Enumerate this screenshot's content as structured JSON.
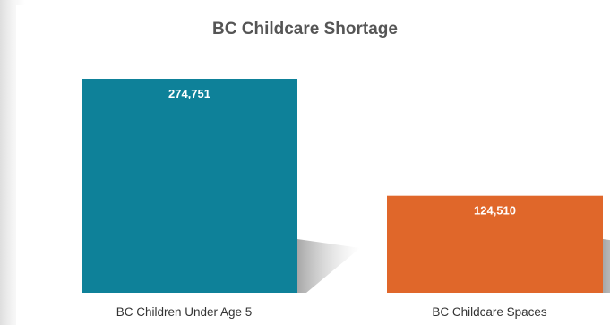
{
  "chart_data": {
    "type": "bar",
    "title": "BC Childcare Shortage",
    "categories": [
      "BC Children Under Age 5",
      "BC Childcare Spaces"
    ],
    "values": [
      274751,
      124510
    ],
    "value_labels": [
      "274,751",
      "124,510"
    ],
    "colors": [
      "#0e8199",
      "#e0672a"
    ],
    "ylim": [
      0,
      274751
    ],
    "grid": false,
    "legend": "none"
  }
}
